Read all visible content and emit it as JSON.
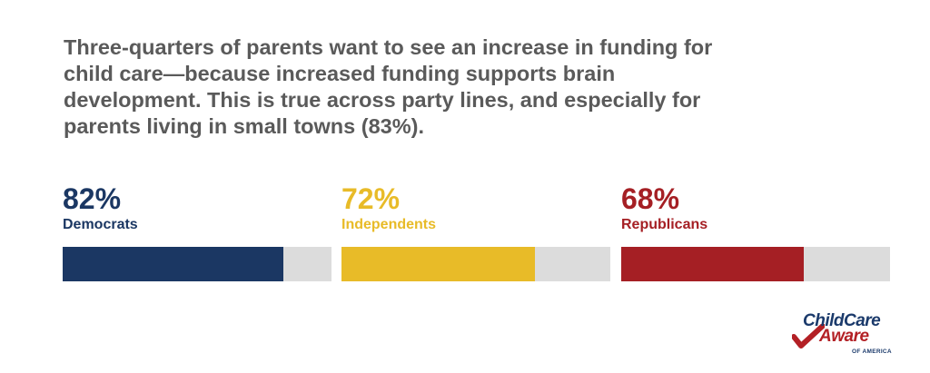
{
  "headline": "Three-quarters of parents want to see an increase in funding for child care—because increased funding supports brain development. This is true across party lines, and especially for parents living in small towns (83%).",
  "chart_data": {
    "type": "bar",
    "orientation": "horizontal",
    "scale": [
      0,
      100
    ],
    "series": [
      {
        "name": "Democrats",
        "value": 82,
        "label": "82%",
        "color": "#1b3763"
      },
      {
        "name": "Independents",
        "value": 72,
        "label": "72%",
        "color": "#e8bb28"
      },
      {
        "name": "Republicans",
        "value": 68,
        "label": "68%",
        "color": "#a51f24"
      }
    ],
    "track_color": "#dcdcdc"
  },
  "logo": {
    "line1": "ChildCare",
    "line2": "Aware",
    "line3": "OF AMERICA",
    "icon": "red-checkmark-icon"
  }
}
